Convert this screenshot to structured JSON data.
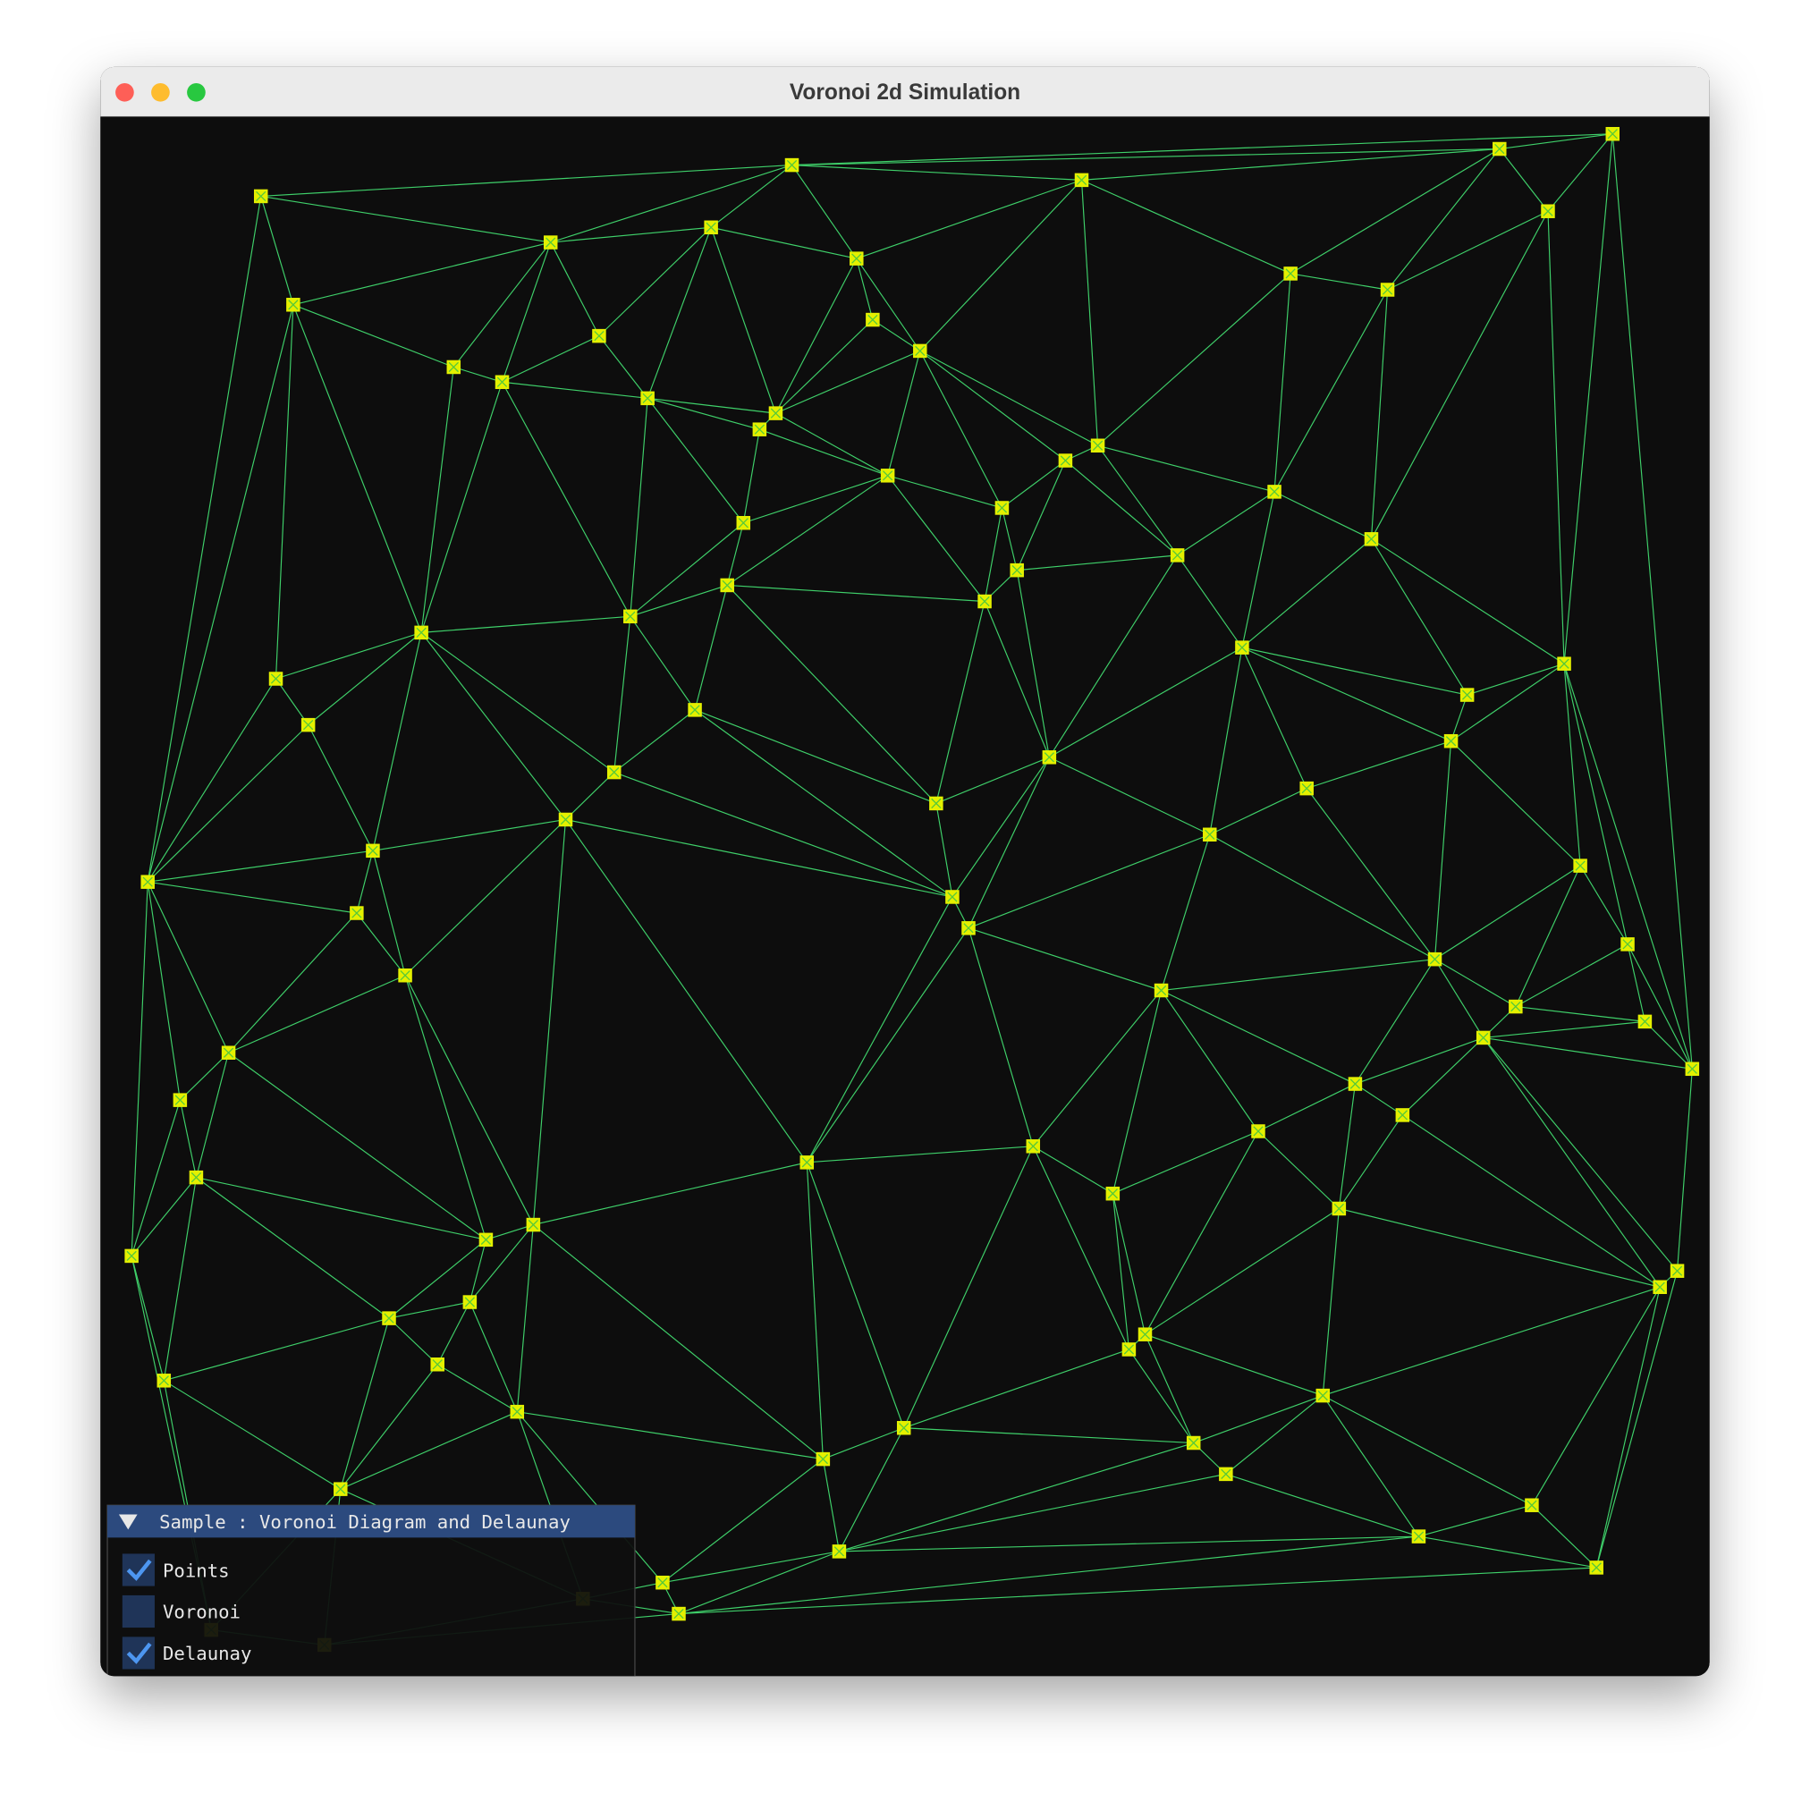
{
  "window": {
    "title": "Voronoi 2d Simulation"
  },
  "panel": {
    "title": "Sample : Voronoi Diagram and Delaunay",
    "options": [
      {
        "label": "Points",
        "checked": true
      },
      {
        "label": "Voronoi",
        "checked": false
      },
      {
        "label": "Delaunay",
        "checked": true
      }
    ]
  }
}
